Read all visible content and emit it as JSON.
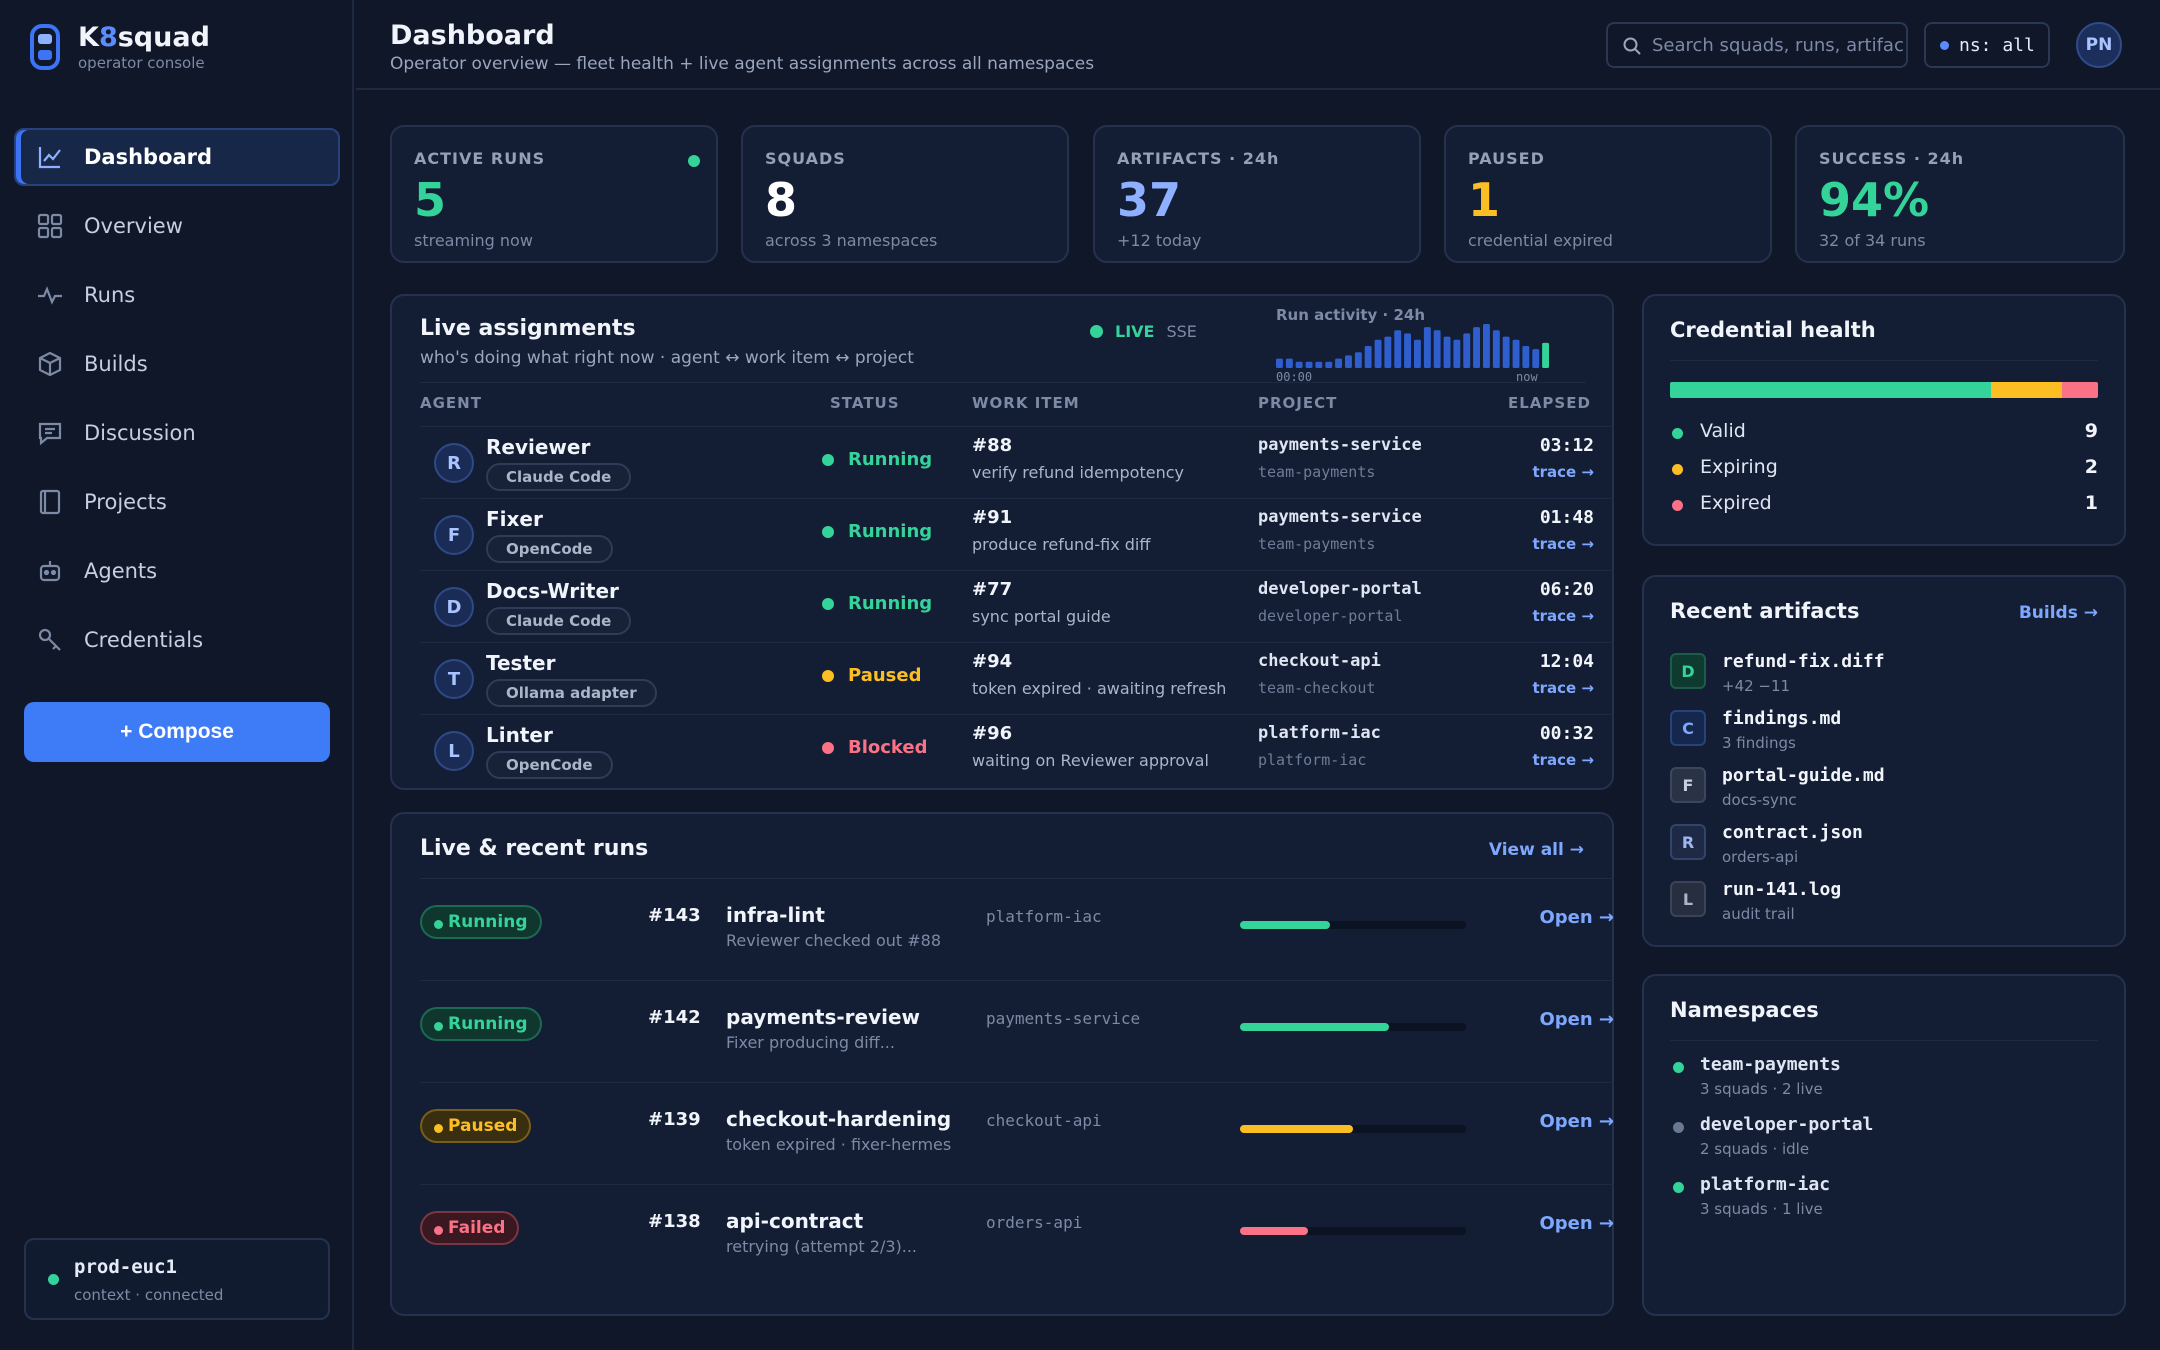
{
  "brand": {
    "name_prefix": "K",
    "name_accent": "8",
    "name_suffix": "squad",
    "subtitle": "operator console"
  },
  "nav": [
    {
      "label": "Dashboard",
      "icon": "chart-icon",
      "active": true
    },
    {
      "label": "Overview",
      "icon": "grid-icon"
    },
    {
      "label": "Runs",
      "icon": "pulse-icon"
    },
    {
      "label": "Builds",
      "icon": "box-icon"
    },
    {
      "label": "Discussion",
      "icon": "chat-icon"
    },
    {
      "label": "Projects",
      "icon": "book-icon"
    },
    {
      "label": "Agents",
      "icon": "robot-icon"
    },
    {
      "label": "Credentials",
      "icon": "key-icon"
    }
  ],
  "compose_label": "+ Compose",
  "context": {
    "name": "prod-euc1",
    "status": "context · connected"
  },
  "header": {
    "title": "Dashboard",
    "subtitle": "Operator overview — fleet health + live agent assignments across all namespaces",
    "search_placeholder": "Search squads, runs, artifacts...",
    "namespace": "ns: all",
    "user_initials": "PN"
  },
  "stats": [
    {
      "label": "ACTIVE RUNS",
      "value": "5",
      "sub": "streaming now",
      "color": "#34d399"
    },
    {
      "label": "SQUADS",
      "value": "8",
      "sub": "across 3 namespaces",
      "color": "#ffffff"
    },
    {
      "label": "ARTIFACTS · 24h",
      "value": "37",
      "sub": "+12 today",
      "color": "#8fb0ff"
    },
    {
      "label": "PAUSED",
      "value": "1",
      "sub": "credential expired",
      "color": "#fbbf24"
    },
    {
      "label": "SUCCESS · 24h",
      "value": "94%",
      "sub": "32 of 34 runs",
      "color": "#34d399"
    }
  ],
  "assignments": {
    "title": "Live assignments",
    "subtitle": "who's doing what right now · agent ↔ work item ↔ project",
    "live_label": "LIVE",
    "sse_label": "SSE",
    "activity": {
      "title": "Run activity · 24h",
      "start": "00:00",
      "end": "now",
      "values": [
        3,
        3,
        2,
        2,
        2,
        2,
        3,
        4,
        5,
        7,
        9,
        10,
        12,
        11,
        9,
        13,
        12,
        10,
        9,
        11,
        13,
        14,
        12,
        10,
        9,
        7,
        6,
        8
      ]
    },
    "columns": {
      "agent": "AGENT",
      "status": "STATUS",
      "work_item": "WORK ITEM",
      "project": "PROJECT",
      "elapsed": "ELAPSED"
    },
    "trace_label": "trace →",
    "rows": [
      {
        "initial": "R",
        "agent": "Reviewer",
        "adapter": "Claude Code",
        "status": "Running",
        "status_color": "#34d399",
        "work_num": "#88",
        "work_desc": "verify refund idempotency",
        "project": "payments-service",
        "team": "team-payments",
        "elapsed": "03:12"
      },
      {
        "initial": "F",
        "agent": "Fixer",
        "adapter": "OpenCode",
        "status": "Running",
        "status_color": "#34d399",
        "work_num": "#91",
        "work_desc": "produce refund-fix diff",
        "project": "payments-service",
        "team": "team-payments",
        "elapsed": "01:48"
      },
      {
        "initial": "D",
        "agent": "Docs-Writer",
        "adapter": "Claude Code",
        "status": "Running",
        "status_color": "#34d399",
        "work_num": "#77",
        "work_desc": "sync portal guide",
        "project": "developer-portal",
        "team": "developer-portal",
        "elapsed": "06:20"
      },
      {
        "initial": "T",
        "agent": "Tester",
        "adapter": "Ollama adapter",
        "status": "Paused",
        "status_color": "#fbbf24",
        "work_num": "#94",
        "work_desc": "token expired · awaiting refresh",
        "project": "checkout-api",
        "team": "team-checkout",
        "elapsed": "12:04"
      },
      {
        "initial": "L",
        "agent": "Linter",
        "adapter": "OpenCode",
        "status": "Blocked",
        "status_color": "#fb7185",
        "work_num": "#96",
        "work_desc": "waiting on Reviewer approval",
        "project": "platform-iac",
        "team": "platform-iac",
        "elapsed": "00:32"
      }
    ]
  },
  "runs": {
    "title": "Live & recent runs",
    "view_all": "View all →",
    "open_label": "Open →",
    "rows": [
      {
        "status": "Running",
        "color": "#34d399",
        "bg": "#10372e",
        "num": "#143",
        "name": "infra-lint",
        "desc": "Reviewer checked out #88",
        "project": "platform-iac",
        "progress": 0.4
      },
      {
        "status": "Running",
        "color": "#34d399",
        "bg": "#10372e",
        "num": "#142",
        "name": "payments-review",
        "desc": "Fixer producing diff...",
        "project": "payments-service",
        "progress": 0.66
      },
      {
        "status": "Paused",
        "color": "#fbbf24",
        "bg": "#3a2e10",
        "num": "#139",
        "name": "checkout-hardening",
        "desc": "token expired · fixer-hermes",
        "project": "checkout-api",
        "progress": 0.5
      },
      {
        "status": "Failed",
        "color": "#fb7185",
        "bg": "#3a1822",
        "num": "#138",
        "name": "api-contract",
        "desc": "retrying (attempt 2/3)...",
        "project": "orders-api",
        "progress": 0.3
      }
    ]
  },
  "credentials": {
    "title": "Credential health",
    "items": [
      {
        "label": "Valid",
        "count": "9",
        "value": 9,
        "color": "#34d399"
      },
      {
        "label": "Expiring",
        "count": "2",
        "value": 2,
        "color": "#fbbf24"
      },
      {
        "label": "Expired",
        "count": "1",
        "value": 1,
        "color": "#fb7185"
      }
    ]
  },
  "artifacts": {
    "title": "Recent artifacts",
    "link": "Builds →",
    "items": [
      {
        "letter": "D",
        "name": "refund-fix.diff",
        "sub": "+42 −11",
        "fg": "#34d399",
        "bg": "#0f3a30",
        "border": "#1d5c4a"
      },
      {
        "letter": "C",
        "name": "findings.md",
        "sub": "3 findings",
        "fg": "#7ea8ff",
        "bg": "#16274d",
        "border": "#28427a"
      },
      {
        "letter": "F",
        "name": "portal-guide.md",
        "sub": "docs-sync",
        "fg": "#c6cfe0",
        "bg": "#2a3245",
        "border": "#3b455c"
      },
      {
        "letter": "R",
        "name": "contract.json",
        "sub": "orders-api",
        "fg": "#9db8f0",
        "bg": "#1e2a45",
        "border": "#33446a"
      },
      {
        "letter": "L",
        "name": "run-141.log",
        "sub": "audit trail",
        "fg": "#aab5c9",
        "bg": "#262e40",
        "border": "#3a4358"
      }
    ]
  },
  "namespaces": {
    "title": "Namespaces",
    "items": [
      {
        "name": "team-payments",
        "sub": "3 squads · 2 live",
        "color": "#34d399"
      },
      {
        "name": "developer-portal",
        "sub": "2 squads · idle",
        "color": "#6b7891"
      },
      {
        "name": "platform-iac",
        "sub": "3 squads · 1 live",
        "color": "#34d399"
      }
    ]
  }
}
